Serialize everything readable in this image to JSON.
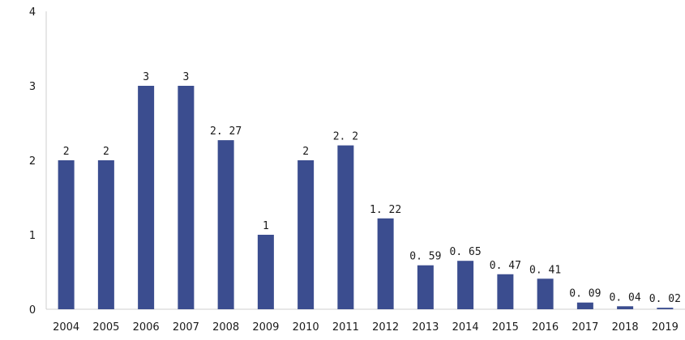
{
  "chart_data": {
    "type": "bar",
    "categories": [
      "2004",
      "2005",
      "2006",
      "2007",
      "2008",
      "2009",
      "2010",
      "2011",
      "2012",
      "2013",
      "2014",
      "2015",
      "2016",
      "2017",
      "2018",
      "2019"
    ],
    "values": [
      2,
      2,
      3,
      3,
      2.27,
      1,
      2,
      2.2,
      1.22,
      0.59,
      0.65,
      0.47,
      0.41,
      0.09,
      0.04,
      0.02
    ],
    "value_labels": [
      "2",
      "2",
      "3",
      "3",
      "2. 27",
      "1",
      "2",
      "2. 2",
      "1. 22",
      "0. 59",
      "0. 65",
      "0. 47",
      "0. 41",
      "0. 09",
      "0. 04",
      "0. 02"
    ],
    "ylim": [
      0,
      4
    ],
    "yticks": [
      "0",
      "1",
      "2",
      "3",
      "4"
    ],
    "grid": false,
    "legend": "none",
    "bar_color": "#3b4d8f",
    "axis_color": "#cfcfcf"
  }
}
